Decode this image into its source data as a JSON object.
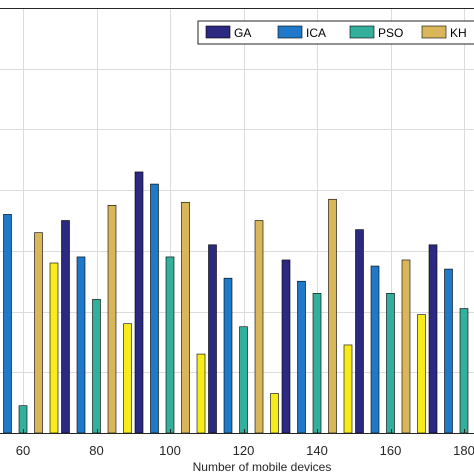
{
  "chart_data": {
    "type": "bar",
    "xlabel": "Number of mobile devices",
    "ylabel": "",
    "categories": [
      "60",
      "80",
      "100",
      "120",
      "140",
      "160",
      "180"
    ],
    "ylim": [
      0,
      14
    ],
    "grid": true,
    "legend_position": "top-right",
    "series": [
      {
        "name": "GA",
        "color": "#2b2a80",
        "values": [
          7.6,
          7.0,
          8.6,
          6.2,
          5.7,
          6.7,
          6.2
        ]
      },
      {
        "name": "ICA",
        "color": "#1f78c8",
        "values": [
          7.2,
          5.8,
          8.2,
          5.1,
          5.0,
          5.5,
          5.4
        ]
      },
      {
        "name": "PSO",
        "color": "#33b09b",
        "values": [
          0.9,
          4.4,
          5.8,
          3.5,
          4.6,
          4.6,
          4.1
        ]
      },
      {
        "name": "KH",
        "color": "#d9b65a",
        "values": [
          6.6,
          7.5,
          7.6,
          7.0,
          7.7,
          5.7,
          6.2
        ]
      },
      {
        "name": "",
        "color": "#f7ec1a",
        "values": [
          5.6,
          3.6,
          2.6,
          1.3,
          2.9,
          3.9,
          0
        ]
      }
    ]
  }
}
